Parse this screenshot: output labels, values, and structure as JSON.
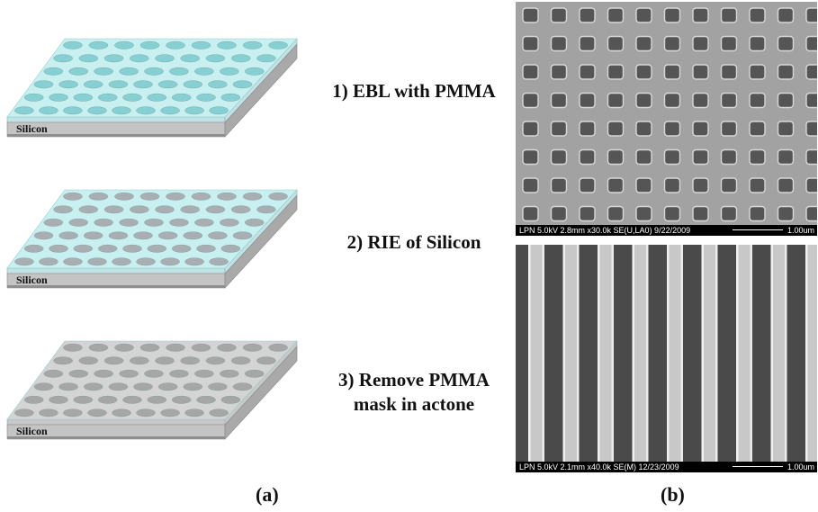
{
  "slabs": [
    {
      "substrate_label": "Silicon",
      "top_color": "#c9f0f0",
      "hole_color": "#86cfd2",
      "side_color": "#bfe3e6"
    },
    {
      "substrate_label": "Silicon",
      "top_color": "#c9f0f0",
      "hole_color": "#a9aeb3",
      "side_color": "#bfe3e6"
    },
    {
      "substrate_label": "Silicon",
      "top_color": "#d4d4d4",
      "hole_color": "#a6a6a6",
      "side_color": "#c8c8c8"
    }
  ],
  "steps": [
    {
      "line1": "1) EBL with PMMA",
      "line2": ""
    },
    {
      "line1": "2) RIE of Silicon",
      "line2": ""
    },
    {
      "line1": "3) Remove  PMMA",
      "line2": "mask in actone"
    }
  ],
  "sem_images": [
    {
      "info": "LPN 5.0kV 2.8mm x30.0k SE(U,LA0) 9/22/2009",
      "scale": "1.00um",
      "pattern": "square-holes"
    },
    {
      "info": "LPN 5.0kV 2.1mm x40.0k SE(M) 12/23/2009",
      "scale": "1.00um",
      "pattern": "lines"
    }
  ],
  "panel_labels": {
    "a": "(a)",
    "b": "(b)"
  }
}
